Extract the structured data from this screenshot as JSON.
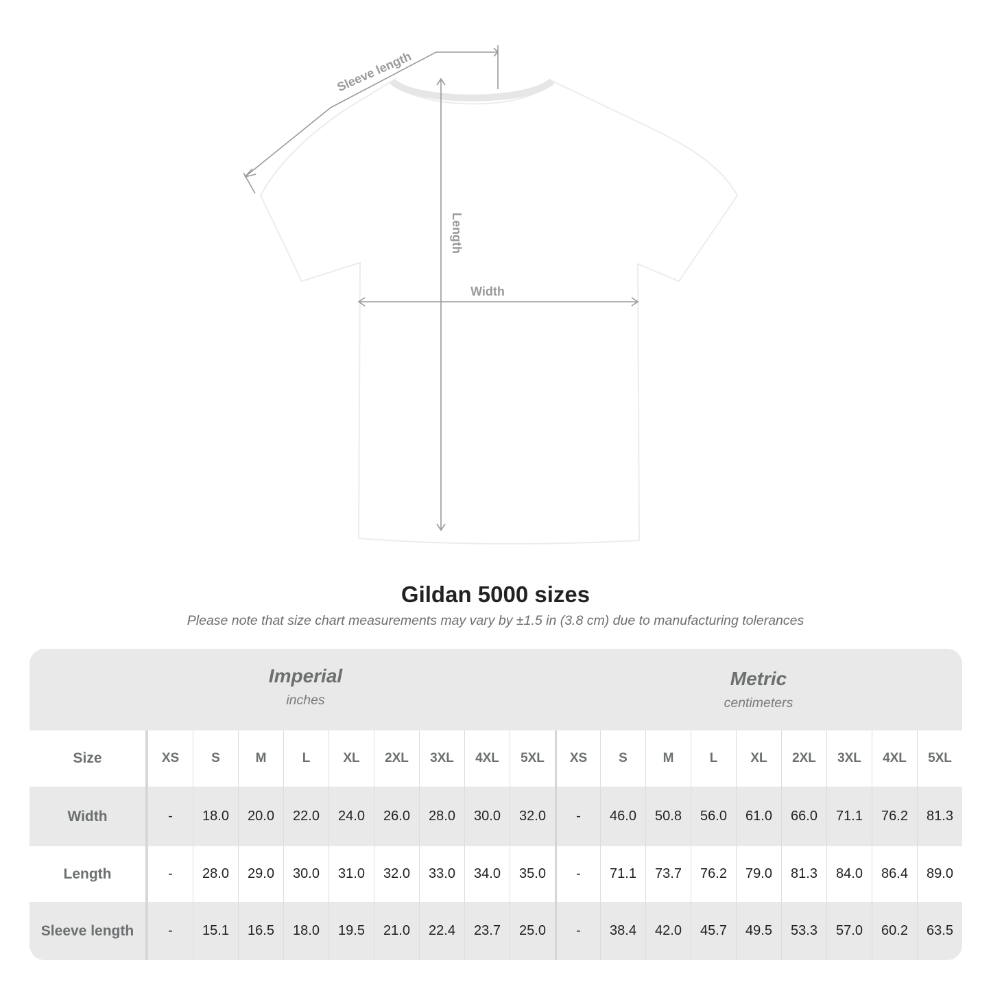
{
  "diagram": {
    "labels": {
      "sleeve": "Sleeve length",
      "length": "Length",
      "width": "Width"
    },
    "colors": {
      "measure_line": "#9a9a9a",
      "shirt": "#ffffff"
    }
  },
  "title": "Gildan 5000 sizes",
  "note": "Please note that size chart measurements may vary by ±1.5 in (3.8 cm) due to manufacturing tolerances",
  "table": {
    "imperial": {
      "name": "Imperial",
      "unit": "inches"
    },
    "metric": {
      "name": "Metric",
      "unit": "centimeters"
    },
    "size_label": "Size",
    "sizes": [
      "XS",
      "S",
      "M",
      "L",
      "XL",
      "2XL",
      "3XL",
      "4XL",
      "5XL"
    ],
    "rows": [
      {
        "label": "Width",
        "imperial": [
          "-",
          "18.0",
          "20.0",
          "22.0",
          "24.0",
          "26.0",
          "28.0",
          "30.0",
          "32.0"
        ],
        "metric": [
          "-",
          "46.0",
          "50.8",
          "56.0",
          "61.0",
          "66.0",
          "71.1",
          "76.2",
          "81.3"
        ]
      },
      {
        "label": "Length",
        "imperial": [
          "-",
          "28.0",
          "29.0",
          "30.0",
          "31.0",
          "32.0",
          "33.0",
          "34.0",
          "35.0"
        ],
        "metric": [
          "-",
          "71.1",
          "73.7",
          "76.2",
          "79.0",
          "81.3",
          "84.0",
          "86.4",
          "89.0"
        ]
      },
      {
        "label": "Sleeve length",
        "imperial": [
          "-",
          "15.1",
          "16.5",
          "18.0",
          "19.5",
          "21.0",
          "22.4",
          "23.7",
          "25.0"
        ],
        "metric": [
          "-",
          "38.4",
          "42.0",
          "45.7",
          "49.5",
          "53.3",
          "57.0",
          "60.2",
          "63.5"
        ]
      }
    ]
  }
}
